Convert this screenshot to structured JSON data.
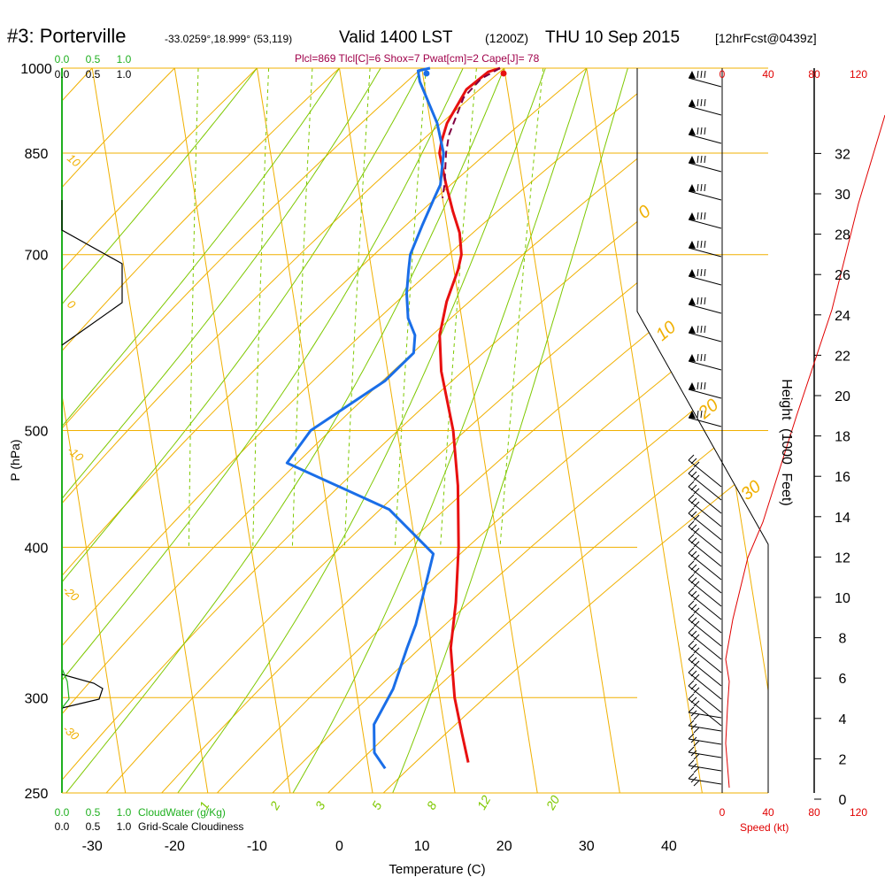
{
  "header": {
    "station": "#3: Porterville",
    "coords": "-33.0259°,18.999° (53,119)",
    "valid": "Valid 1400 LST",
    "zulu": "(1200Z)",
    "date": "THU 10 Sep 2015",
    "fcst": "[12hrFcst@0439z]"
  },
  "indices": "Plcl=869 Tlcl[C]=6 Shox=7 Pwat[cm]=2 Cape[J]= 78",
  "colors": {
    "isotherm": "#f0b000",
    "dry_adiabat": "#f0b000",
    "moist_adiabat": "#7ec800",
    "mixing_ratio": "#7ec800",
    "temperature": "#e81010",
    "dewpoint": "#1a6ee8",
    "parcel": "#800040",
    "cloud_water": "#20b020",
    "speed": "#e00000",
    "indices_text": "#a0004a"
  },
  "chart_data": {
    "type": "line",
    "title": "#3: Porterville",
    "xlabel": "Temperature (C)",
    "ylabel": "P (hPa)",
    "right_ylabel": "Height (1000 Feet)",
    "x_ticks": [
      -30,
      -20,
      -10,
      0,
      10,
      20,
      30,
      40
    ],
    "xlim": [
      -34,
      46
    ],
    "p_levels": [
      250,
      300,
      400,
      500,
      700,
      850,
      1000
    ],
    "pressure_labels": [
      "250",
      "300",
      "400",
      "500",
      "700",
      "850",
      "1000"
    ],
    "height_ticks_kft": [
      0,
      2,
      4,
      6,
      8,
      10,
      12,
      14,
      16,
      18,
      20,
      22,
      24,
      26,
      28,
      30,
      32
    ],
    "height_labels": [
      "0",
      "2",
      "4",
      "6",
      "8",
      "10",
      "12",
      "14",
      "16",
      "18",
      "20",
      "22",
      "24",
      "26",
      "28",
      "30",
      "32"
    ],
    "height_label_text": [
      "Height",
      "(1000",
      "Feet)"
    ],
    "speed_ticks": [
      "0",
      "40",
      "80",
      "120"
    ],
    "speed_label": "Speed (kt)",
    "cloud_water_ticks": [
      "0.0",
      "0.5",
      "1.0"
    ],
    "cloud_water_label": "CloudWater (g/Kg)",
    "cloudiness_ticks": [
      "0.0",
      "0.5",
      "1.0"
    ],
    "cloudiness_label": "Grid-Scale Cloudiness",
    "mixing_ratio_labels": [
      "1",
      "2",
      "3",
      "5",
      "8",
      "12",
      "20"
    ],
    "dry_adiabat_labels": [
      "10",
      "0",
      "-10",
      "-20",
      "-30"
    ],
    "moist_adiabat_labels": [
      "0",
      "10",
      "20",
      "30"
    ],
    "series": [
      {
        "name": "Temperature",
        "points": [
          [
            19.5,
            1000
          ],
          [
            18,
            993
          ],
          [
            15,
            960
          ],
          [
            12,
            900
          ],
          [
            11,
            870
          ],
          [
            10.5,
            850
          ],
          [
            10.7,
            800
          ],
          [
            11,
            760
          ],
          [
            11.4,
            730
          ],
          [
            11.2,
            700
          ],
          [
            10.5,
            680
          ],
          [
            8.5,
            640
          ],
          [
            7,
            600
          ],
          [
            6.5,
            560
          ],
          [
            6.8,
            500
          ],
          [
            6.3,
            450
          ],
          [
            5.2,
            400
          ],
          [
            3.8,
            360
          ],
          [
            2.3,
            330
          ],
          [
            1.8,
            300
          ],
          [
            2,
            280
          ],
          [
            2.2,
            265
          ]
        ]
      },
      {
        "name": "Dewpoint",
        "points": [
          [
            11,
            1000
          ],
          [
            9.5,
            995
          ],
          [
            9.5,
            975
          ],
          [
            10.8,
            900
          ],
          [
            11,
            850
          ],
          [
            10,
            800
          ],
          [
            9,
            780
          ],
          [
            7,
            740
          ],
          [
            5,
            700
          ],
          [
            4.5,
            680
          ],
          [
            3.8,
            650
          ],
          [
            3.5,
            620
          ],
          [
            4,
            600
          ],
          [
            3.5,
            580
          ],
          [
            -0.5,
            550
          ],
          [
            -10.5,
            500
          ],
          [
            -14,
            470
          ],
          [
            -2.5,
            430
          ],
          [
            2,
            395
          ],
          [
            1,
            380
          ],
          [
            -1.5,
            345
          ],
          [
            -3,
            330
          ],
          [
            -5.5,
            305
          ],
          [
            -8.5,
            285
          ],
          [
            -9,
            270
          ],
          [
            -8,
            262
          ]
        ]
      },
      {
        "name": "Parcel",
        "points": [
          [
            19.5,
            1000
          ],
          [
            17,
            980
          ],
          [
            14.5,
            945
          ],
          [
            12,
            880
          ],
          [
            11.3,
            850
          ],
          [
            10.5,
            800
          ],
          [
            10,
            780
          ]
        ]
      }
    ],
    "surface_temperature": 19.5,
    "surface_dewpoint": 11
  }
}
